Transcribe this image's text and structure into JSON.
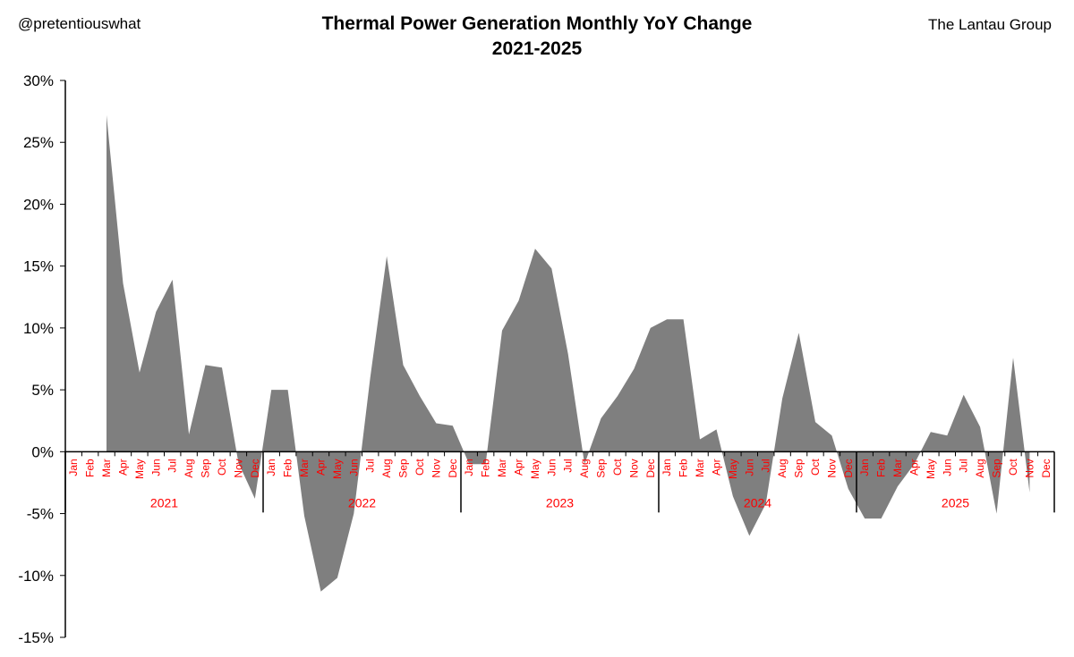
{
  "header": {
    "handle": "@pretentiouswhat",
    "title_line1": "Thermal Power Generation Monthly YoY Change",
    "title_line2": "2021-2025",
    "source": "The Lantau Group"
  },
  "chart_data": {
    "type": "area",
    "title": "Thermal Power Generation Monthly YoY Change 2021-2025",
    "ylim": [
      -15,
      30
    ],
    "yticks": [
      30,
      25,
      20,
      15,
      10,
      5,
      0,
      -5,
      -10,
      -15
    ],
    "ytick_labels": [
      "30%",
      "25%",
      "20%",
      "15%",
      "10%",
      "5%",
      "0%",
      "-5%",
      "-10%",
      "-15%"
    ],
    "grid": false,
    "colors": {
      "fill": "#7f7f7f",
      "axis": "#000000",
      "tick_label": "#ff0000"
    },
    "years": [
      "2021",
      "2022",
      "2023",
      "2024",
      "2025"
    ],
    "months": [
      "Jan",
      "Feb",
      "Mar",
      "Apr",
      "May",
      "Jun",
      "Jul",
      "Aug",
      "Sep",
      "Oct",
      "Nov",
      "Dec"
    ],
    "series": [
      {
        "values": [
          null,
          null,
          27.2,
          13.6,
          6.4,
          11.3,
          13.9,
          1.4,
          7.0,
          6.8,
          -0.9,
          -3.8,
          5.0,
          5.0,
          -5.2,
          -11.3,
          -10.2,
          -5.0,
          6.0,
          15.8,
          7.0,
          4.5,
          2.3,
          2.1,
          -1.0,
          -1.0,
          9.8,
          12.2,
          16.4,
          14.8,
          7.9,
          -1.0,
          2.7,
          4.5,
          6.7,
          10.0,
          10.7,
          10.7,
          1.0,
          1.8,
          -3.6,
          -6.8,
          -4.2,
          4.3,
          9.6,
          2.4,
          1.3,
          -3.0,
          -5.4,
          -5.4,
          -2.8,
          -1.0,
          1.6,
          1.3,
          4.6,
          2.0,
          -5.0,
          7.6,
          -3.3
        ]
      }
    ]
  }
}
